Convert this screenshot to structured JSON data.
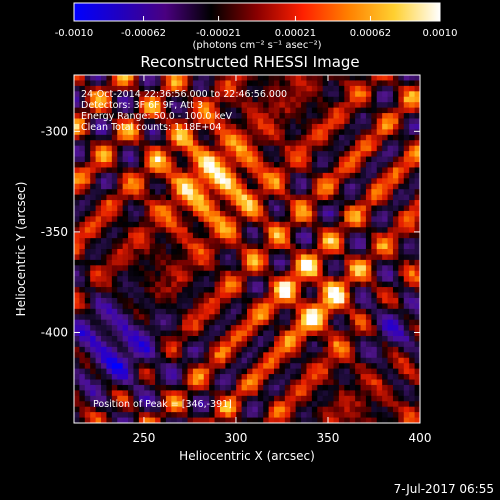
{
  "colorbar": {
    "ticks": [
      "-0.0010",
      "-0.00062",
      "-0.00021",
      "0.00021",
      "0.00062",
      "0.0010"
    ],
    "tick_values": [
      -0.001,
      -0.00062,
      -0.00021,
      0.00021,
      0.00062,
      0.001
    ],
    "range": [
      -0.001,
      0.001
    ],
    "unit_label": "(photons cm⁻² s⁻¹ asec⁻²)",
    "colormap": [
      "#0000ff",
      "#2000c0",
      "#4a0080",
      "#000000",
      "#8a0000",
      "#ff2000",
      "#ff8000",
      "#ffd030",
      "#ffffff"
    ]
  },
  "chart_data": {
    "type": "heatmap",
    "title": "Reconstructed RHESSI Image",
    "xlabel": "Heliocentric X (arcsec)",
    "ylabel": "Heliocentric Y (arcsec)",
    "xlim": [
      212,
      400
    ],
    "ylim": [
      -445,
      -272
    ],
    "xticks": [
      250,
      300,
      350,
      400
    ],
    "yticks": [
      -300,
      -350,
      -400
    ],
    "annotations": [
      "24-Oct-2014 22:36:56.000 to 22:46:56.000",
      "Detectors: 3F 6F 9F, Att 3",
      "Energy Range: 50.0 - 100.0 keV",
      "Clean    Total counts: 1.18E+04",
      "Position of Peak = [346,-391]"
    ],
    "peak": {
      "x": 346,
      "y": -391
    },
    "grid": false
  },
  "footer": {
    "timestamp": "7-Jul-2017 06:55"
  }
}
